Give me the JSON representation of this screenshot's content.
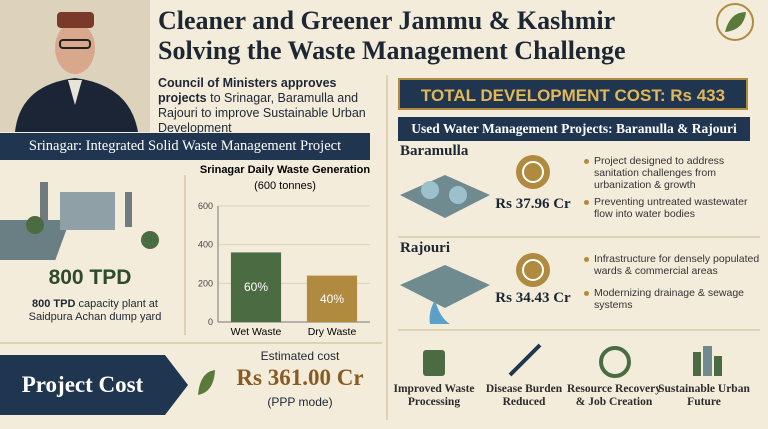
{
  "header": {
    "title_line1": "Cleaner and Greener Jammu & Kashmir",
    "title_line2": "Solving the Waste Management Challenge"
  },
  "intro": {
    "strong": "Council of Ministers approves projects",
    "text": "to Srinagar, Baramulla and Rajouri to improve Sustainable Urban Development"
  },
  "srinagar": {
    "heading": "Srinagar: Integrated Solid Waste Management Project",
    "capacity": "800 TPD",
    "caption_strong": "800 TPD",
    "caption": "capacity plant at Saidpura Achan dump yard"
  },
  "chart_data": {
    "type": "bar",
    "title": "Srinagar Daily Waste Generation",
    "subtitle": "(600 tonnes)",
    "categories": [
      "Wet Waste",
      "Dry Waste"
    ],
    "values": [
      360,
      240
    ],
    "value_labels": [
      "60%",
      "40%"
    ],
    "colors": [
      "#4b6b42",
      "#b08a3f"
    ],
    "ylim": [
      0,
      600
    ],
    "yticks": [
      0,
      200,
      400,
      600
    ],
    "grid": true
  },
  "project_cost": {
    "label": "Project Cost",
    "caption": "Estimated cost",
    "cost": "Rs 361.00 Cr",
    "mode": "(PPP mode)"
  },
  "total": "TOTAL DEVELOPMENT COST: Rs 433 Crores",
  "water_heading": "Used Water Management Projects: Baranulla & Rajouri",
  "projects": [
    {
      "name": "Baramulla",
      "cost": "Rs 37.96 Cr",
      "points": [
        "Project designed to address sanitation challenges from urbanization & growth",
        "Preventing untreated wastewater flow into water bodies"
      ]
    },
    {
      "name": "Rajouri",
      "cost": "Rs 34.43 Cr",
      "points": [
        "Infrastructure for densely populated wards & commercial areas",
        "Modernizing drainage & sewage systems"
      ]
    }
  ],
  "outcomes": [
    "Improved Waste Processing",
    "Disease Burden Reduced",
    "Resource Recovery & Job Creation",
    "Sustainable Urban Future"
  ]
}
